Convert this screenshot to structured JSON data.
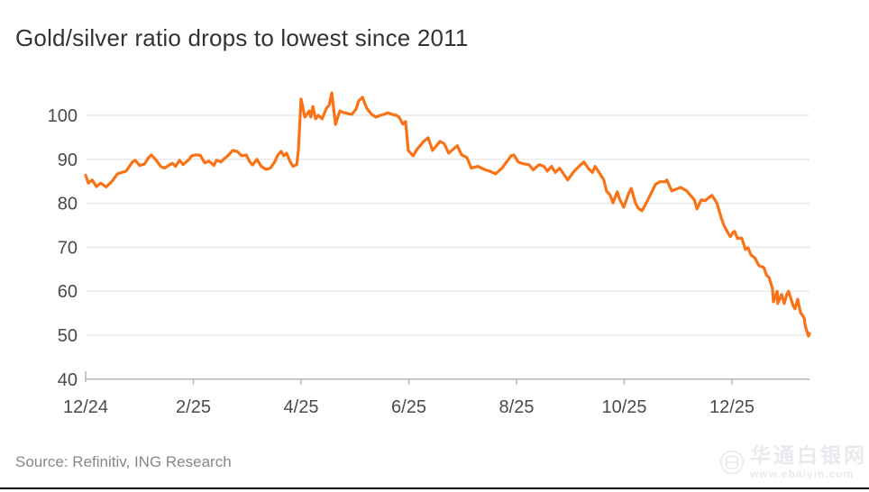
{
  "title": "Gold/silver ratio drops to lowest since 2011",
  "source": "Source: Refinitiv, ING Research",
  "watermark": {
    "name": "华通白银网",
    "url": "www.ebaiyin.com",
    "logo_icon": "circle-monogram"
  },
  "colors": {
    "line": "#F97316",
    "grid": "#E4E4E4",
    "axis": "#B5B5B5",
    "tick_label": "#4A4A4A",
    "title": "#333333",
    "source": "#878787",
    "divider": "#000000",
    "background": "#FFFFFF"
  },
  "chart_data": {
    "type": "line",
    "title": "Gold/silver ratio drops to lowest since 2011",
    "xlabel": "",
    "ylabel": "",
    "x_unit": "months since Dec 2024 (t=0 is 12/24, daily gold/silver ratio)",
    "x_tick_positions": [
      0,
      2,
      4,
      6,
      8,
      10,
      12
    ],
    "x_tick_labels": [
      "12/24",
      "2/25",
      "4/25",
      "6/25",
      "8/25",
      "10/25",
      "12/25"
    ],
    "x_range": [
      0,
      13.44
    ],
    "y_ticks": [
      40,
      50,
      60,
      70,
      80,
      90,
      100
    ],
    "ylim": [
      40,
      106
    ],
    "grid": "horizontal",
    "legend": "none",
    "series": [
      {
        "name": "Gold/silver ratio",
        "points": [
          [
            0,
            86.4
          ],
          [
            0.05,
            84.6
          ],
          [
            0.12,
            85.3
          ],
          [
            0.2,
            83.8
          ],
          [
            0.28,
            84.6
          ],
          [
            0.38,
            83.7
          ],
          [
            0.49,
            85
          ],
          [
            0.59,
            86.7
          ],
          [
            0.67,
            87
          ],
          [
            0.75,
            87.3
          ],
          [
            0.87,
            89.4
          ],
          [
            0.92,
            89.8
          ],
          [
            1,
            88.6
          ],
          [
            1.09,
            88.9
          ],
          [
            1.17,
            90.4
          ],
          [
            1.22,
            91
          ],
          [
            1.31,
            89.8
          ],
          [
            1.39,
            88.4
          ],
          [
            1.46,
            88
          ],
          [
            1.54,
            88.6
          ],
          [
            1.61,
            89.1
          ],
          [
            1.67,
            88.4
          ],
          [
            1.74,
            89.8
          ],
          [
            1.81,
            88.8
          ],
          [
            1.86,
            89.3
          ],
          [
            1.92,
            90
          ],
          [
            1.97,
            90.8
          ],
          [
            2.04,
            91
          ],
          [
            2.13,
            90.9
          ],
          [
            2.21,
            89.2
          ],
          [
            2.29,
            89.6
          ],
          [
            2.38,
            88.6
          ],
          [
            2.43,
            89.8
          ],
          [
            2.51,
            89.4
          ],
          [
            2.56,
            90
          ],
          [
            2.64,
            90.8
          ],
          [
            2.73,
            92
          ],
          [
            2.81,
            91.8
          ],
          [
            2.9,
            90.8
          ],
          [
            2.98,
            91
          ],
          [
            3.05,
            89.4
          ],
          [
            3.1,
            88.7
          ],
          [
            3.18,
            90
          ],
          [
            3.26,
            88.4
          ],
          [
            3.35,
            87.7
          ],
          [
            3.43,
            88
          ],
          [
            3.51,
            89.4
          ],
          [
            3.57,
            91
          ],
          [
            3.63,
            91.8
          ],
          [
            3.68,
            90.8
          ],
          [
            3.73,
            91.4
          ],
          [
            3.8,
            89.4
          ],
          [
            3.85,
            88.4
          ],
          [
            3.92,
            88.8
          ],
          [
            3.95,
            92
          ],
          [
            4,
            103.7
          ],
          [
            4.07,
            99.6
          ],
          [
            4.15,
            101
          ],
          [
            4.18,
            99.6
          ],
          [
            4.22,
            102
          ],
          [
            4.27,
            99.2
          ],
          [
            4.32,
            100
          ],
          [
            4.39,
            99.2
          ],
          [
            4.47,
            101.6
          ],
          [
            4.52,
            102.3
          ],
          [
            4.57,
            105.1
          ],
          [
            4.64,
            97.9
          ],
          [
            4.72,
            101
          ],
          [
            4.8,
            100.6
          ],
          [
            4.94,
            100.2
          ],
          [
            5.02,
            101.4
          ],
          [
            5.07,
            103.3
          ],
          [
            5.14,
            104.1
          ],
          [
            5.22,
            101.6
          ],
          [
            5.31,
            100.2
          ],
          [
            5.39,
            99.6
          ],
          [
            5.47,
            100
          ],
          [
            5.56,
            100.3
          ],
          [
            5.61,
            100.6
          ],
          [
            5.69,
            100.2
          ],
          [
            5.77,
            100
          ],
          [
            5.82,
            99.6
          ],
          [
            5.89,
            98
          ],
          [
            5.94,
            98.6
          ],
          [
            5.99,
            92
          ],
          [
            6.08,
            90.8
          ],
          [
            6.16,
            92.4
          ],
          [
            6.28,
            94.1
          ],
          [
            6.36,
            94.9
          ],
          [
            6.44,
            92
          ],
          [
            6.58,
            94.1
          ],
          [
            6.66,
            93.5
          ],
          [
            6.74,
            91.4
          ],
          [
            6.9,
            93.1
          ],
          [
            6.98,
            91
          ],
          [
            7.08,
            90.4
          ],
          [
            7.16,
            88
          ],
          [
            7.28,
            88.4
          ],
          [
            7.4,
            87.7
          ],
          [
            7.5,
            87.3
          ],
          [
            7.61,
            86.7
          ],
          [
            7.73,
            88
          ],
          [
            7.9,
            90.8
          ],
          [
            7.95,
            91
          ],
          [
            8.03,
            89.4
          ],
          [
            8.12,
            89
          ],
          [
            8.23,
            88.8
          ],
          [
            8.31,
            87.6
          ],
          [
            8.42,
            88.8
          ],
          [
            8.51,
            88.4
          ],
          [
            8.57,
            87.3
          ],
          [
            8.65,
            88.4
          ],
          [
            8.72,
            87
          ],
          [
            8.8,
            88
          ],
          [
            8.95,
            85.3
          ],
          [
            9.07,
            87.3
          ],
          [
            9.21,
            89
          ],
          [
            9.25,
            89.4
          ],
          [
            9.34,
            87.8
          ],
          [
            9.41,
            87
          ],
          [
            9.46,
            88.4
          ],
          [
            9.57,
            86.3
          ],
          [
            9.62,
            85.3
          ],
          [
            9.67,
            82.8
          ],
          [
            9.74,
            81.8
          ],
          [
            9.79,
            80.1
          ],
          [
            9.87,
            82.6
          ],
          [
            9.92,
            80.8
          ],
          [
            9.99,
            79.1
          ],
          [
            10.08,
            82.2
          ],
          [
            10.13,
            83.4
          ],
          [
            10.21,
            80
          ],
          [
            10.26,
            78.9
          ],
          [
            10.33,
            78.3
          ],
          [
            10.43,
            80.6
          ],
          [
            10.58,
            84.3
          ],
          [
            10.66,
            84.9
          ],
          [
            10.76,
            84.9
          ],
          [
            10.79,
            85.3
          ],
          [
            10.88,
            82.8
          ],
          [
            10.96,
            83.2
          ],
          [
            11.05,
            83.6
          ],
          [
            11.16,
            82.8
          ],
          [
            11.3,
            80.8
          ],
          [
            11.35,
            78.7
          ],
          [
            11.43,
            80.8
          ],
          [
            11.5,
            80.6
          ],
          [
            11.6,
            81.6
          ],
          [
            11.63,
            81.8
          ],
          [
            11.72,
            80
          ],
          [
            11.8,
            76.7
          ],
          [
            11.85,
            75
          ],
          [
            11.92,
            73.4
          ],
          [
            11.97,
            72.4
          ],
          [
            12.02,
            73.4
          ],
          [
            12.05,
            73.6
          ],
          [
            12.1,
            72
          ],
          [
            12.18,
            72.1
          ],
          [
            12.25,
            69.5
          ],
          [
            12.3,
            69.9
          ],
          [
            12.35,
            68.3
          ],
          [
            12.43,
            67.5
          ],
          [
            12.5,
            65.8
          ],
          [
            12.59,
            65.4
          ],
          [
            12.64,
            63.7
          ],
          [
            12.69,
            63.1
          ],
          [
            12.75,
            60.7
          ],
          [
            12.77,
            57.6
          ],
          [
            12.84,
            60
          ],
          [
            12.85,
            57.2
          ],
          [
            12.92,
            59.3
          ],
          [
            12.97,
            57.2
          ],
          [
            13.02,
            59.3
          ],
          [
            13.05,
            60
          ],
          [
            13.14,
            56.6
          ],
          [
            13.17,
            56
          ],
          [
            13.22,
            58.2
          ],
          [
            13.27,
            55.2
          ],
          [
            13.34,
            53.9
          ],
          [
            13.36,
            52.1
          ],
          [
            13.39,
            50.9
          ],
          [
            13.42,
            49.8
          ],
          [
            13.44,
            50.4
          ]
        ]
      }
    ]
  }
}
